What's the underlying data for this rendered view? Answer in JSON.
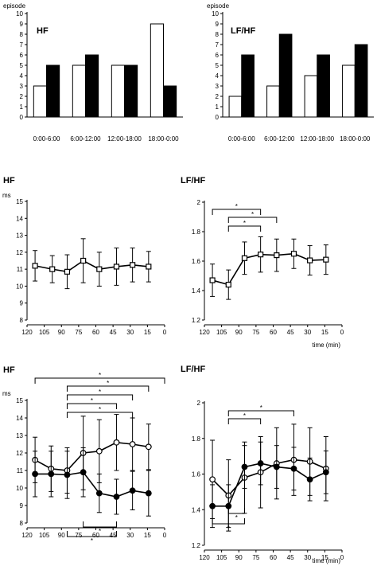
{
  "chart_data": [
    {
      "type": "bar",
      "title": "HF",
      "ylabel": "episode",
      "ylim": [
        0,
        10
      ],
      "yticks": [
        "0",
        "1",
        "2",
        "3",
        "4",
        "5",
        "6",
        "7",
        "8",
        "9",
        "10"
      ],
      "categories": [
        "0:00-6:00",
        "6:00-12:00",
        "12:00-18:00",
        "18:00-0:00"
      ],
      "series": [
        {
          "fill": "white",
          "values": [
            3,
            5,
            5,
            9
          ]
        },
        {
          "fill": "black",
          "values": [
            5,
            6,
            5,
            3
          ]
        }
      ]
    },
    {
      "type": "bar",
      "title": "LF/HF",
      "ylabel": "episode",
      "ylim": [
        0,
        10
      ],
      "yticks": [
        "0",
        "1",
        "2",
        "3",
        "4",
        "5",
        "6",
        "7",
        "8",
        "9",
        "10"
      ],
      "categories": [
        "0:00-6:00",
        "6:00-12:00",
        "12:00-18:00",
        "18:00-0:00"
      ],
      "series": [
        {
          "fill": "white",
          "values": [
            2,
            3,
            4,
            5
          ]
        },
        {
          "fill": "black",
          "values": [
            6,
            8,
            6,
            7
          ]
        }
      ]
    },
    {
      "type": "line",
      "title": "HF",
      "ylabel": "ms",
      "ylim": [
        8,
        15
      ],
      "yticks": [
        "8",
        "9",
        "10",
        "11",
        "12",
        "13",
        "14",
        "15"
      ],
      "xlim": [
        120,
        0
      ],
      "xticks": [
        "120",
        "105",
        "90",
        "75",
        "60",
        "45",
        "30",
        "15",
        "0"
      ],
      "marker": "square",
      "series": [
        {
          "x": [
            113,
            98,
            85,
            71,
            57,
            42,
            28,
            14
          ],
          "y": [
            11.2,
            11.0,
            10.85,
            11.5,
            11.0,
            11.15,
            11.25,
            11.15
          ],
          "err": [
            0.9,
            0.8,
            1.0,
            1.3,
            1.0,
            1.1,
            1.0,
            0.9
          ]
        }
      ]
    },
    {
      "type": "line",
      "title": "LF/HF",
      "ylim": [
        1.2,
        2.0
      ],
      "yticks": [
        "1.2",
        "1.4",
        "1.6",
        "1.8",
        "2"
      ],
      "xlim": [
        120,
        0
      ],
      "xticks": [
        "120",
        "105",
        "90",
        "75",
        "60",
        "45",
        "30",
        "15",
        "0"
      ],
      "xlabel": "time (min)",
      "marker": "square",
      "series": [
        {
          "x": [
            113,
            99,
            85,
            71,
            57,
            42,
            28,
            14
          ],
          "y": [
            1.47,
            1.44,
            1.62,
            1.645,
            1.64,
            1.65,
            1.605,
            1.61
          ],
          "err": [
            0.11,
            0.1,
            0.11,
            0.12,
            0.11,
            0.1,
            0.1,
            0.1
          ]
        }
      ],
      "annotations": [
        {
          "from": 113,
          "to": 71,
          "label": "*"
        },
        {
          "from": 99,
          "to": 57,
          "label": "*"
        },
        {
          "from": 99,
          "to": 71,
          "label": "*"
        }
      ]
    },
    {
      "type": "line",
      "title": "HF",
      "ylabel": "ms",
      "ylim": [
        8,
        15
      ],
      "yticks": [
        "8",
        "9",
        "10",
        "11",
        "12",
        "13",
        "14",
        "15"
      ],
      "xlim": [
        120,
        0
      ],
      "xticks": [
        "120",
        "105",
        "90",
        "75",
        "60",
        "45",
        "30",
        "15",
        "0"
      ],
      "series": [
        {
          "marker": "open-circle",
          "x": [
            113,
            99,
            85,
            71,
            57,
            42,
            28,
            14
          ],
          "y": [
            11.6,
            11.1,
            11.0,
            12.0,
            12.1,
            12.6,
            12.5,
            12.35
          ],
          "err": [
            1.3,
            1.3,
            1.3,
            2.1,
            1.8,
            1.6,
            1.5,
            1.3
          ]
        },
        {
          "marker": "filled-circle",
          "x": [
            113,
            99,
            85,
            71,
            57,
            42,
            28,
            14
          ],
          "y": [
            10.8,
            10.8,
            10.75,
            10.9,
            9.7,
            9.5,
            9.85,
            9.7
          ],
          "err": [
            1.3,
            1.3,
            1.35,
            1.4,
            1.1,
            1.0,
            1.1,
            1.3
          ]
        }
      ],
      "annotations": [
        {
          "from": 113,
          "to": 0,
          "label": "*",
          "side": "top"
        },
        {
          "from": 85,
          "to": 14,
          "label": "*",
          "side": "top"
        },
        {
          "from": 85,
          "to": 28,
          "label": "*",
          "side": "top"
        },
        {
          "from": 85,
          "to": 42,
          "label": "*",
          "side": "top"
        },
        {
          "from": 85,
          "to": 28,
          "label": "*",
          "side": "top"
        },
        {
          "from": 71,
          "to": 42,
          "label": "*",
          "side": "bottom"
        },
        {
          "from": 85,
          "to": 42,
          "label": "*",
          "side": "bottom"
        }
      ]
    },
    {
      "type": "line",
      "title": "LF/HF",
      "ylim": [
        1.2,
        2.0
      ],
      "yticks": [
        "1.2",
        "1.4",
        "1.6",
        "1.8",
        "2"
      ],
      "xlim": [
        120,
        0
      ],
      "xticks": [
        "120",
        "105",
        "90",
        "75",
        "60",
        "45",
        "30",
        "15",
        "0"
      ],
      "xlabel": "time (min)",
      "series": [
        {
          "marker": "open-circle",
          "x": [
            113,
            99,
            85,
            71,
            57,
            42,
            28,
            14
          ],
          "y": [
            1.57,
            1.48,
            1.58,
            1.61,
            1.66,
            1.68,
            1.67,
            1.63
          ],
          "err": [
            0.22,
            0.2,
            0.2,
            0.2,
            0.2,
            0.2,
            0.19,
            0.18
          ]
        },
        {
          "marker": "filled-circle",
          "x": [
            113,
            99,
            85,
            71,
            57,
            42,
            28,
            14
          ],
          "y": [
            1.42,
            1.42,
            1.64,
            1.66,
            1.64,
            1.63,
            1.57,
            1.61
          ],
          "err": [
            0.12,
            0.12,
            0.12,
            0.12,
            0.12,
            0.12,
            0.12,
            0.12
          ]
        }
      ],
      "annotations": [
        {
          "from": 99,
          "to": 42,
          "label": "*",
          "side": "top"
        },
        {
          "from": 99,
          "to": 71,
          "label": "*",
          "side": "top"
        },
        {
          "from": 99,
          "to": 85,
          "label": "*",
          "side": "bottom"
        },
        {
          "from": 113,
          "to": 85,
          "label": "*",
          "side": "bottom"
        }
      ]
    }
  ]
}
